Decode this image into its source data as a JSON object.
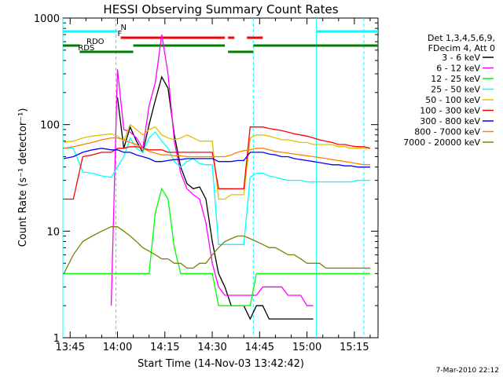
{
  "chart_data": {
    "type": "line",
    "title": "HESSI Observing Summary Count Rates",
    "xlabel": "Start Time (14-Nov-03 13:42:42)",
    "ylabel": "Count Rate (s⁻¹ detector⁻¹)",
    "xlim": [
      "13:42:42",
      "15:22:30"
    ],
    "ylim": [
      1,
      1000
    ],
    "y_scale": "log",
    "x_ticks": [
      "13:45",
      "14:00",
      "14:15",
      "14:30",
      "14:45",
      "15:00",
      "15:15"
    ],
    "y_ticks": [
      "1",
      "10",
      "100",
      "1000"
    ],
    "legend_header": [
      "Det 1,3,4,5,6,9,",
      "FDecim 4, Att 0"
    ],
    "legend_position": "right",
    "flags": [
      {
        "name": "N",
        "color": "#00ffff",
        "segments": [
          [
            "13:42:42",
            "14:00:00"
          ],
          [
            "15:03:00",
            "15:22:30"
          ]
        ]
      },
      {
        "name": "F",
        "color": "#ff0000",
        "segments": [
          [
            "14:01:00",
            "14:34:00"
          ],
          [
            "14:35:00",
            "14:37:00"
          ],
          [
            "14:41:00",
            "14:46:00"
          ]
        ]
      },
      {
        "name": "RDO",
        "color": "#008000",
        "segments": [
          [
            "13:42:42",
            "13:48:00"
          ],
          [
            "14:05:00",
            "14:34:00"
          ],
          [
            "14:43:00",
            "15:22:30"
          ]
        ]
      },
      {
        "name": "RDS",
        "color": "#008000",
        "segments": [
          [
            "13:48:00",
            "14:05:00"
          ],
          [
            "14:35:00",
            "14:43:00"
          ]
        ]
      }
    ],
    "vlines": {
      "solid": [
        "13:42:42",
        "15:03:00"
      ],
      "dashed": [
        "13:59:30",
        "14:43:00",
        "15:18:00"
      ]
    },
    "x": [
      "13:43",
      "13:46",
      "13:49",
      "13:52",
      "13:55",
      "13:58",
      "14:00",
      "14:02",
      "14:04",
      "14:06",
      "14:08",
      "14:10",
      "14:12",
      "14:14",
      "14:16",
      "14:18",
      "14:20",
      "14:22",
      "14:24",
      "14:26",
      "14:28",
      "14:30",
      "14:32",
      "14:34",
      "14:36",
      "14:38",
      "14:40",
      "14:42",
      "14:44",
      "14:46",
      "14:48",
      "14:50",
      "14:52",
      "14:54",
      "14:56",
      "14:58",
      "15:00",
      "15:02",
      "15:04",
      "15:06",
      "15:08",
      "15:10",
      "15:12",
      "15:14",
      "15:16",
      "15:18",
      "15:20"
    ],
    "series": [
      {
        "name": "3 - 6 keV",
        "color": "#000000",
        "values": [
          null,
          null,
          null,
          null,
          null,
          null,
          180,
          60,
          95,
          70,
          55,
          100,
          170,
          280,
          220,
          80,
          40,
          28,
          25,
          26,
          20,
          8,
          4,
          3,
          2,
          2,
          2,
          1.5,
          2,
          2,
          1.5,
          1.5,
          1.5,
          1.5,
          1.5,
          1.5,
          1.5,
          1.5,
          null,
          null,
          null,
          null,
          null,
          null,
          null,
          null,
          null
        ]
      },
      {
        "name": "6 - 12 keV",
        "color": "#ff00ff",
        "values": [
          null,
          null,
          null,
          null,
          null,
          2,
          330,
          90,
          85,
          75,
          60,
          150,
          250,
          700,
          300,
          70,
          35,
          25,
          22,
          20,
          12,
          5,
          3,
          2.5,
          2.5,
          2.5,
          2.5,
          2.5,
          2.5,
          3,
          3,
          3,
          3,
          2.5,
          2.5,
          2.5,
          2,
          2,
          null,
          null,
          null,
          null,
          null,
          null,
          null,
          null,
          null
        ]
      },
      {
        "name": "12 - 25 keV",
        "color": "#00ff00",
        "values": [
          4,
          4,
          4,
          4,
          4,
          4,
          4,
          4,
          4,
          4,
          4,
          4,
          15,
          25,
          20,
          7,
          4,
          4,
          4,
          4,
          4,
          4,
          2,
          2,
          2,
          2,
          2,
          2,
          4,
          4,
          4,
          4,
          4,
          4,
          4,
          4,
          4,
          4,
          4,
          4,
          4,
          4,
          4,
          4,
          4,
          4,
          4
        ]
      },
      {
        "name": "25 - 50 keV",
        "color": "#00ffff",
        "values": [
          60,
          60,
          36,
          35,
          33,
          32,
          40,
          50,
          75,
          60,
          55,
          75,
          85,
          70,
          60,
          45,
          40,
          45,
          48,
          43,
          42,
          42,
          7.5,
          7.5,
          7.5,
          7.5,
          7.5,
          32,
          35,
          35,
          33,
          32,
          31,
          30,
          30,
          30,
          29,
          29,
          29,
          29,
          29,
          29,
          29,
          29,
          30,
          30,
          30
        ]
      },
      {
        "name": "50 - 100 keV",
        "color": "#e0c000",
        "values": [
          68,
          70,
          75,
          78,
          80,
          82,
          78,
          70,
          100,
          90,
          80,
          90,
          95,
          80,
          75,
          72,
          75,
          80,
          75,
          70,
          70,
          70,
          20,
          20,
          22,
          22,
          22,
          75,
          80,
          80,
          78,
          75,
          72,
          72,
          70,
          68,
          68,
          65,
          65,
          65,
          65,
          62,
          62,
          60,
          60,
          60,
          60
        ]
      },
      {
        "name": "100 - 300 keV",
        "color": "#ff0000",
        "values": [
          20,
          20,
          50,
          52,
          55,
          55,
          60,
          60,
          62,
          62,
          60,
          58,
          58,
          58,
          55,
          55,
          55,
          55,
          55,
          55,
          55,
          55,
          25,
          25,
          25,
          25,
          25,
          95,
          95,
          95,
          92,
          90,
          88,
          85,
          82,
          80,
          78,
          75,
          72,
          70,
          68,
          65,
          65,
          63,
          62,
          62,
          60
        ]
      },
      {
        "name": "300 - 800 keV",
        "color": "#0000ff",
        "values": [
          48,
          50,
          55,
          58,
          60,
          58,
          58,
          55,
          55,
          52,
          50,
          48,
          45,
          45,
          46,
          47,
          47,
          48,
          48,
          48,
          48,
          48,
          45,
          45,
          45,
          46,
          46,
          55,
          55,
          55,
          53,
          52,
          50,
          50,
          48,
          47,
          46,
          45,
          44,
          43,
          42,
          42,
          41,
          41,
          40,
          40,
          40
        ]
      },
      {
        "name": "800 - 7000 keV",
        "color": "#ff8000",
        "values": [
          60,
          62,
          65,
          68,
          72,
          75,
          75,
          72,
          68,
          65,
          60,
          56,
          54,
          52,
          52,
          51,
          51,
          50,
          50,
          50,
          50,
          50,
          50,
          50,
          52,
          55,
          57,
          58,
          60,
          60,
          58,
          56,
          55,
          54,
          53,
          52,
          51,
          50,
          49,
          48,
          47,
          46,
          45,
          44,
          43,
          42,
          42
        ]
      },
      {
        "name": "7000 - 20000 keV",
        "color": "#808000",
        "values": [
          4,
          6,
          8,
          9,
          10,
          11,
          11,
          10,
          9,
          8,
          7,
          6.5,
          6,
          5.5,
          5.5,
          5,
          5,
          4.5,
          4.5,
          5,
          5,
          6,
          7,
          8,
          8.5,
          9,
          9,
          8.5,
          8,
          7.5,
          7,
          7,
          6.5,
          6,
          6,
          5.5,
          5,
          5,
          5,
          4.5,
          4.5,
          4.5,
          4.5,
          4.5,
          4.5,
          4.5,
          4.5
        ]
      }
    ]
  },
  "footer": {
    "timestamp": "7-Mar-2010 22:12"
  }
}
